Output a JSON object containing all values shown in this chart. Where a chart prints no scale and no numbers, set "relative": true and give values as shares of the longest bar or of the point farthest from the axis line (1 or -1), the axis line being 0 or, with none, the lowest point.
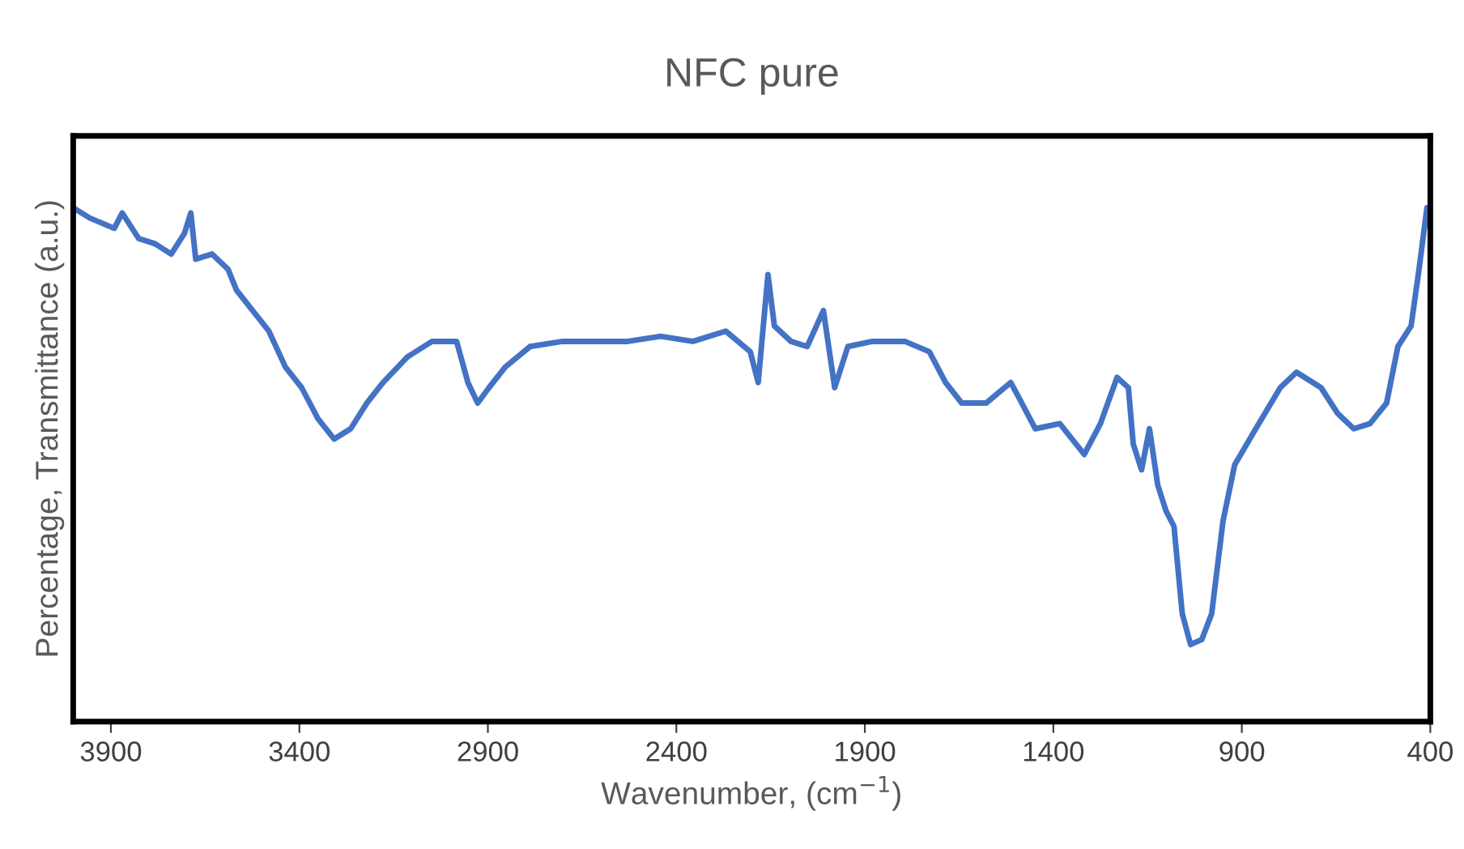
{
  "chart_data": {
    "type": "line",
    "title": "NFC pure",
    "xlabel": "Wavenumber, (cm$^{−1}$)",
    "ylabel": "Percentage, Transmittance (a.u.)",
    "relative": true,
    "tick_labels": "x",
    "grid": false,
    "legend": false,
    "marker": "none",
    "line_style": "solid",
    "xlim": [
      4000,
      400
    ],
    "xticks": [
      3900,
      3400,
      2900,
      2400,
      1900,
      1400,
      900,
      400
    ],
    "x": [
      4000,
      3956,
      3891,
      3870,
      3826,
      3783,
      3740,
      3705,
      3688,
      3675,
      3632,
      3589,
      3567,
      3524,
      3481,
      3437,
      3394,
      3351,
      3308,
      3264,
      3221,
      3178,
      3113,
      3048,
      2983,
      2953,
      2927,
      2897,
      2854,
      2788,
      2702,
      2615,
      2529,
      2442,
      2356,
      2269,
      2204,
      2183,
      2157,
      2140,
      2096,
      2053,
      2010,
      1980,
      1945,
      1880,
      1794,
      1729,
      1686,
      1643,
      1578,
      1513,
      1491,
      1448,
      1383,
      1318,
      1275,
      1231,
      1201,
      1188,
      1166,
      1145,
      1123,
      1101,
      1080,
      1058,
      1036,
      1006,
      980,
      950,
      919,
      863,
      798,
      755,
      690,
      646,
      603,
      560,
      516,
      486,
      451,
      430,
      409,
      400
    ],
    "series": [
      {
        "color": "#4472c4",
        "values": [
          1.0,
          0.98,
          0.96,
          0.99,
          0.94,
          0.93,
          0.91,
          0.95,
          0.99,
          0.9,
          0.91,
          0.88,
          0.84,
          0.8,
          0.76,
          0.69,
          0.65,
          0.59,
          0.55,
          0.57,
          0.62,
          0.66,
          0.71,
          0.74,
          0.74,
          0.66,
          0.62,
          0.65,
          0.69,
          0.73,
          0.74,
          0.74,
          0.74,
          0.75,
          0.74,
          0.76,
          0.72,
          0.66,
          0.87,
          0.77,
          0.74,
          0.73,
          0.8,
          0.65,
          0.73,
          0.74,
          0.74,
          0.72,
          0.66,
          0.62,
          0.62,
          0.66,
          0.63,
          0.57,
          0.58,
          0.52,
          0.58,
          0.67,
          0.65,
          0.54,
          0.49,
          0.57,
          0.46,
          0.41,
          0.38,
          0.21,
          0.15,
          0.16,
          0.21,
          0.39,
          0.5,
          0.57,
          0.65,
          0.68,
          0.65,
          0.6,
          0.57,
          0.58,
          0.62,
          0.73,
          0.77,
          0.88,
          1.0,
          0.96
        ]
      }
    ]
  }
}
